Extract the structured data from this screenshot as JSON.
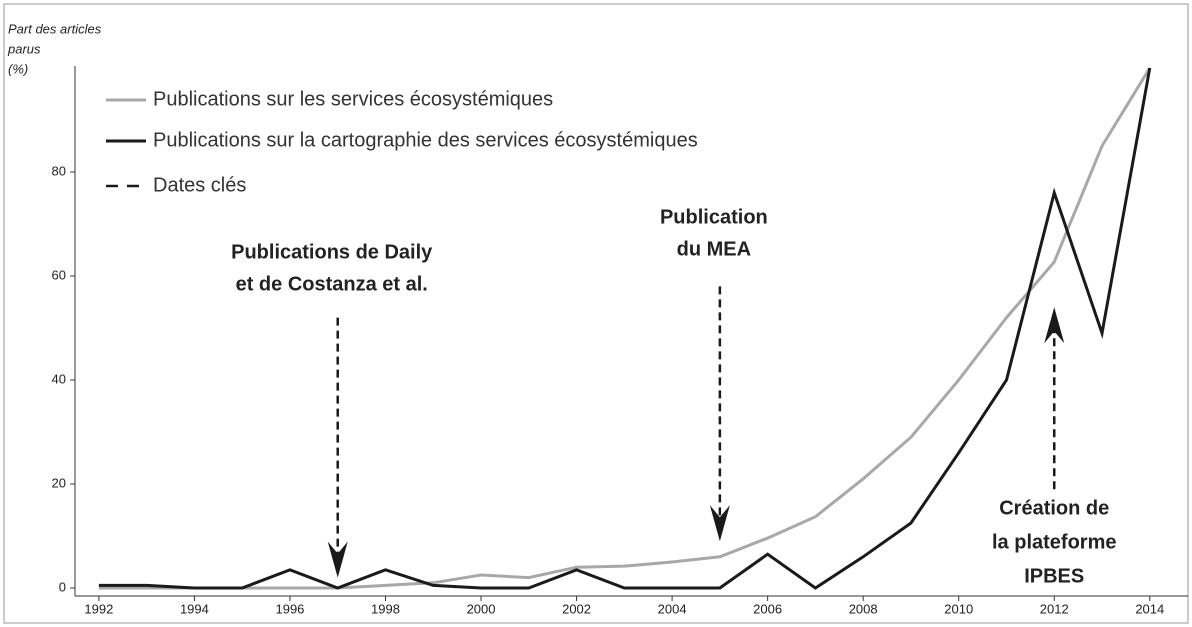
{
  "chart_data": {
    "type": "line",
    "y_label": [
      "Part des articles",
      "parus",
      "(%)"
    ],
    "x": [
      1992,
      1993,
      1994,
      1995,
      1996,
      1997,
      1998,
      1999,
      2000,
      2001,
      2002,
      2003,
      2004,
      2005,
      2006,
      2007,
      2008,
      2009,
      2010,
      2011,
      2012,
      2013,
      2014
    ],
    "series": [
      {
        "name": "Publications sur les services écosystémiques",
        "color": "#a8a8a8",
        "values": [
          0,
          0,
          0,
          0,
          0,
          0,
          0.5,
          1,
          2.5,
          2,
          4,
          4.2,
          5,
          6,
          9.6,
          13.7,
          21,
          29,
          40,
          52,
          62.7,
          85,
          100
        ]
      },
      {
        "name": "Publications sur la cartographie des services écosystémiques",
        "color": "#1a1a1a",
        "values": [
          0.5,
          0.5,
          0,
          0,
          3.5,
          0,
          3.5,
          0.5,
          0,
          0,
          3.5,
          0,
          0,
          0,
          6.5,
          0,
          6,
          12.5,
          26,
          40,
          76,
          49,
          100
        ]
      }
    ],
    "key_dates": {
      "name": "Dates clés",
      "color": "#1a1a1a",
      "annotations": [
        {
          "x": 1997,
          "text": [
            "Publications de Daily",
            "et de Costanza et al."
          ]
        },
        {
          "x": 2005,
          "text": [
            "Publication",
            "du MEA"
          ]
        },
        {
          "x": 2012,
          "text": [
            "Création de",
            "la plateforme",
            "IPBES"
          ]
        }
      ]
    },
    "xlim": [
      1991.5,
      2014.8
    ],
    "ylim": [
      0,
      100
    ],
    "xticks": [
      1992,
      1994,
      1996,
      1998,
      2000,
      2002,
      2004,
      2006,
      2008,
      2010,
      2012,
      2014
    ],
    "yticks": [
      0,
      20,
      40,
      60,
      80
    ]
  }
}
